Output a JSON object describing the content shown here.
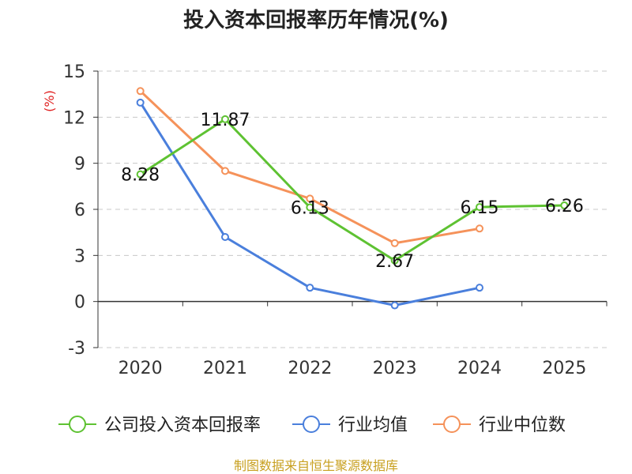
{
  "chart_data": {
    "type": "line",
    "title": "投入资本回报率历年情况(%)",
    "ylabel": "(%)",
    "categories": [
      "2020",
      "2021",
      "2022",
      "2023",
      "2024",
      "2025"
    ],
    "ylim": [
      -3,
      15
    ],
    "yticks": [
      15,
      12,
      9,
      6,
      3,
      0,
      -3
    ],
    "grid": true,
    "legend_placement": "bottom",
    "series": [
      {
        "name": "公司投入资本回报率",
        "color": "#5ec232",
        "values": [
          8.28,
          11.87,
          6.13,
          2.67,
          6.15,
          6.26
        ],
        "labels": [
          "8.28",
          "11.87",
          "6.13",
          "2.67",
          "6.15",
          "6.26"
        ]
      },
      {
        "name": "行业均值",
        "color": "#4a7fdc",
        "values": [
          12.95,
          4.2,
          0.9,
          -0.25,
          0.9,
          null
        ]
      },
      {
        "name": "行业中位数",
        "color": "#f5925a",
        "values": [
          13.7,
          8.5,
          6.7,
          3.8,
          4.75,
          null
        ]
      }
    ]
  },
  "footer": {
    "source": "制图数据来自恒生聚源数据库"
  }
}
